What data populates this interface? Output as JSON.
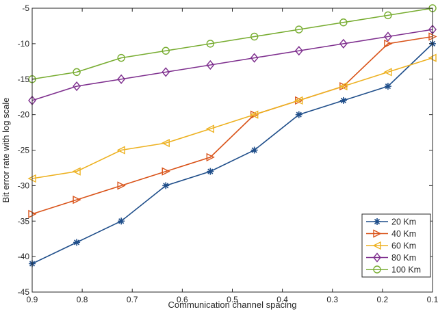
{
  "chart_data": {
    "type": "line",
    "xlabel": "Communication channel spacing",
    "ylabel": "Bit error rate with log scale",
    "xlim": [
      0.9,
      0.1
    ],
    "ylim": [
      -45,
      -5
    ],
    "x_reversed": true,
    "grid": false,
    "legend_position": "bottom-right",
    "x_ticks": [
      0.9,
      0.8,
      0.7,
      0.6,
      0.5,
      0.4,
      0.3,
      0.2,
      0.1
    ],
    "x_tick_labels": [
      "0.9",
      "0.8",
      "0.7",
      "0.6",
      "0.5",
      "0.4",
      "0.3",
      "0.2",
      "0.1"
    ],
    "y_ticks": [
      -45,
      -40,
      -35,
      -30,
      -25,
      -20,
      -15,
      -10,
      -5
    ],
    "y_tick_labels": [
      "-45",
      "-40",
      "-35",
      "-30",
      "-25",
      "-20",
      "-15",
      "-10",
      "-5"
    ],
    "x": [
      0.9,
      0.811,
      0.722,
      0.633,
      0.544,
      0.456,
      0.367,
      0.278,
      0.189,
      0.1
    ],
    "series": [
      {
        "name": "20 Km",
        "color": "#1f4e8a",
        "marker": "asterisk",
        "values": [
          -41,
          -38,
          -35,
          -30,
          -28,
          -25,
          -20,
          -18,
          -16,
          -10
        ]
      },
      {
        "name": "40 Km",
        "color": "#d95319",
        "marker": "triangle-right",
        "values": [
          -34,
          -32,
          -30,
          -28,
          -26,
          -20,
          -18,
          -16,
          -10,
          -9
        ]
      },
      {
        "name": "60 Km",
        "color": "#edb120",
        "marker": "triangle-left",
        "values": [
          -29,
          -28,
          -25,
          -24,
          -22,
          -20,
          -18,
          -16,
          -14,
          -12
        ]
      },
      {
        "name": "80 Km",
        "color": "#7e2f8e",
        "marker": "diamond",
        "values": [
          -18,
          -16,
          -15,
          -14,
          -13,
          -12,
          -11,
          -10,
          -9,
          -8
        ]
      },
      {
        "name": "100 Km",
        "color": "#77ac30",
        "marker": "circle",
        "values": [
          -15,
          -14,
          -12,
          -11,
          -10,
          -9,
          -8,
          -7,
          -6,
          -5
        ]
      }
    ]
  }
}
